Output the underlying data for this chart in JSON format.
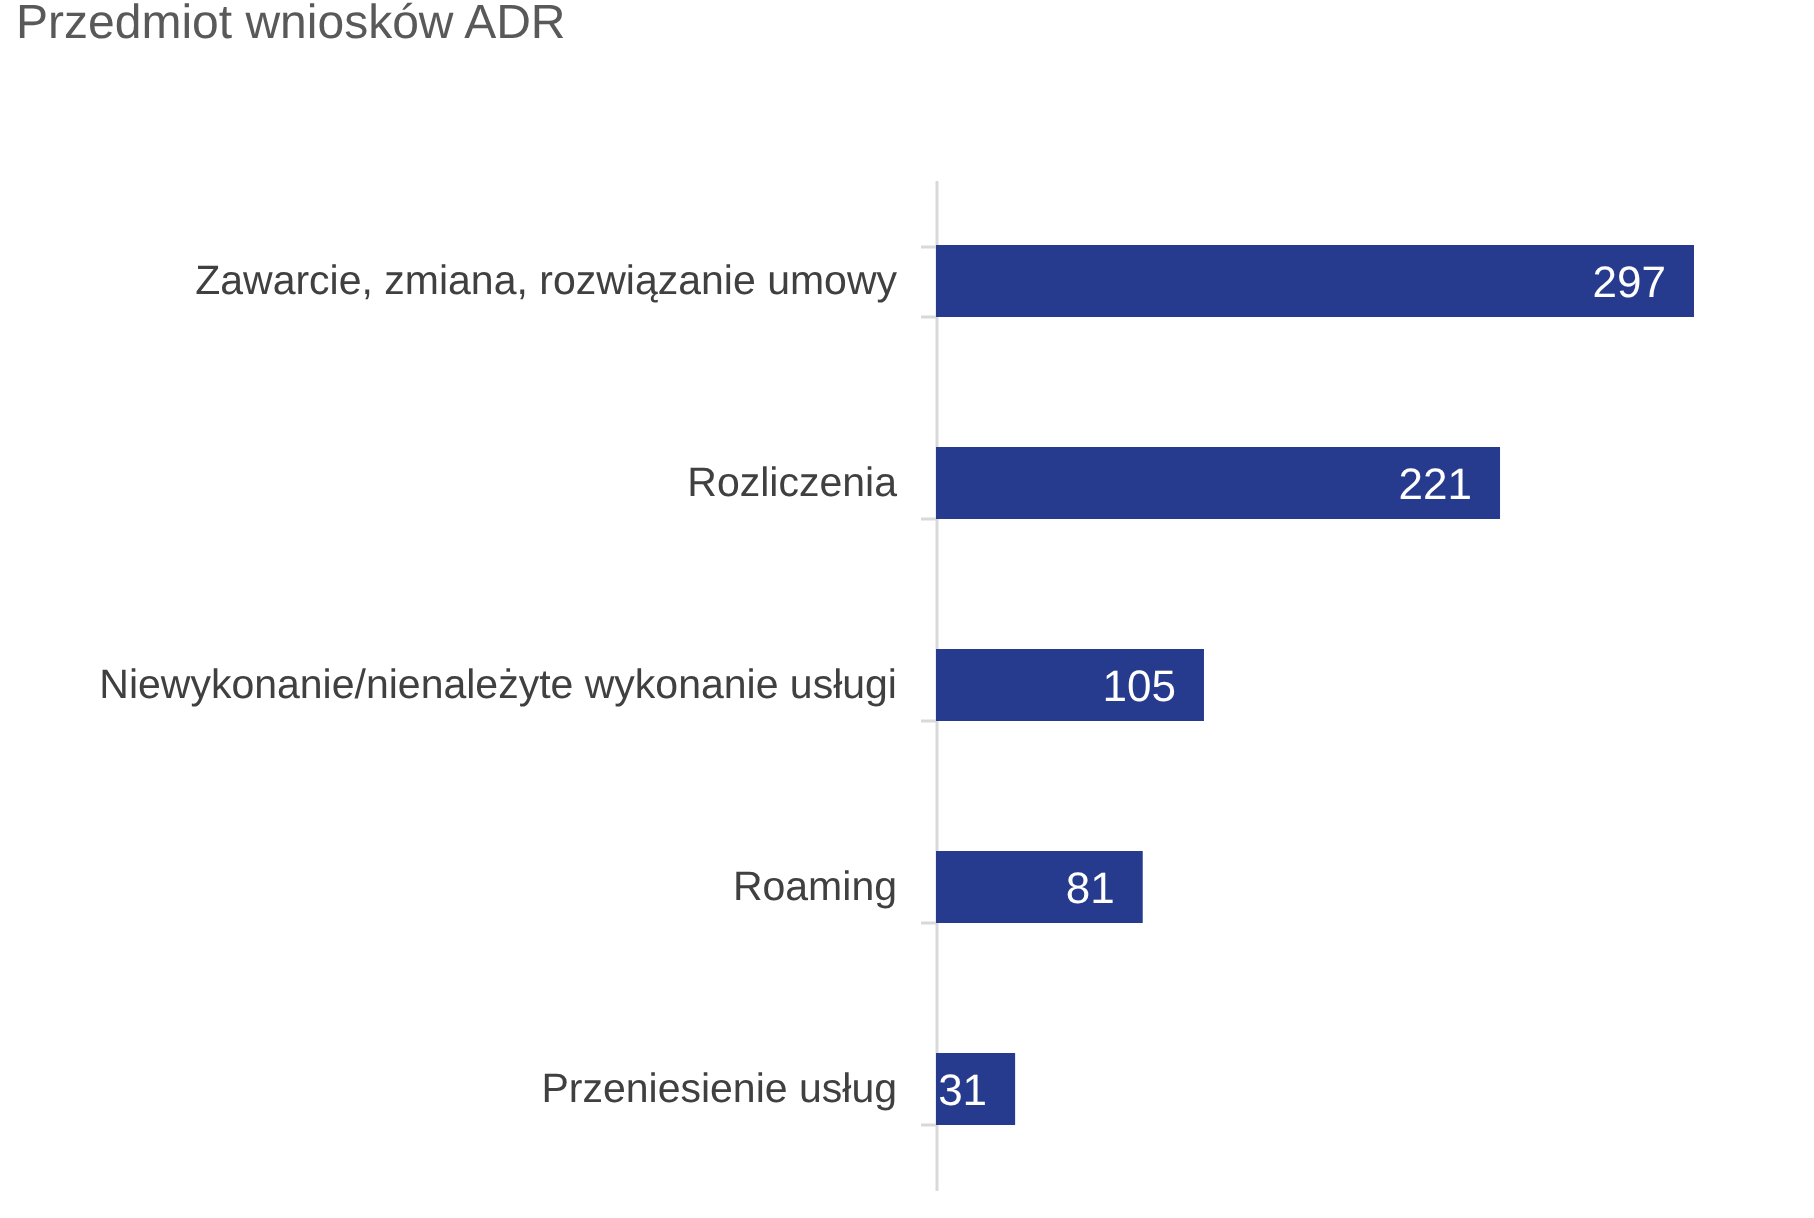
{
  "chart_data": {
    "type": "bar",
    "title": "Przedmiot wniosków ADR",
    "orientation": "horizontal",
    "categories": [
      "Zawarcie, zmiana, rozwiązanie umowy",
      "Rozliczenia",
      "Niewykonanie/nienależyte wykonanie usługi",
      "Roaming",
      "Przeniesienie usług"
    ],
    "values": [
      297,
      221,
      105,
      81,
      31
    ],
    "color": "#263a8e",
    "data_labels": true,
    "tick_labels": "y"
  }
}
